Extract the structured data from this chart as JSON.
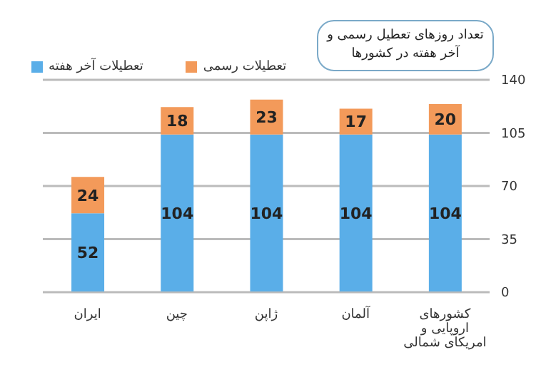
{
  "chart_data": {
    "type": "bar",
    "title": "تعداد روزهای تعطیل رسمی و آخر هفته در کشورها",
    "categories": [
      "ایران",
      "چین",
      "ژاپن",
      "آلمان",
      "کشورهای اروپایی و امریکای شمالی"
    ],
    "series": [
      {
        "name": "تعطیلات آخر هفته",
        "color": "#5aaee8",
        "values": [
          52,
          104,
          104,
          104,
          104
        ]
      },
      {
        "name": "تعطیلات رسمی",
        "color": "#f39a5a",
        "values": [
          24,
          18,
          23,
          17,
          20
        ]
      }
    ],
    "stacked": true,
    "ylim": [
      0,
      140
    ],
    "yticks": [
      0,
      35,
      70,
      105,
      140
    ],
    "grid": "y",
    "legend": "top left",
    "data_labels": true
  }
}
